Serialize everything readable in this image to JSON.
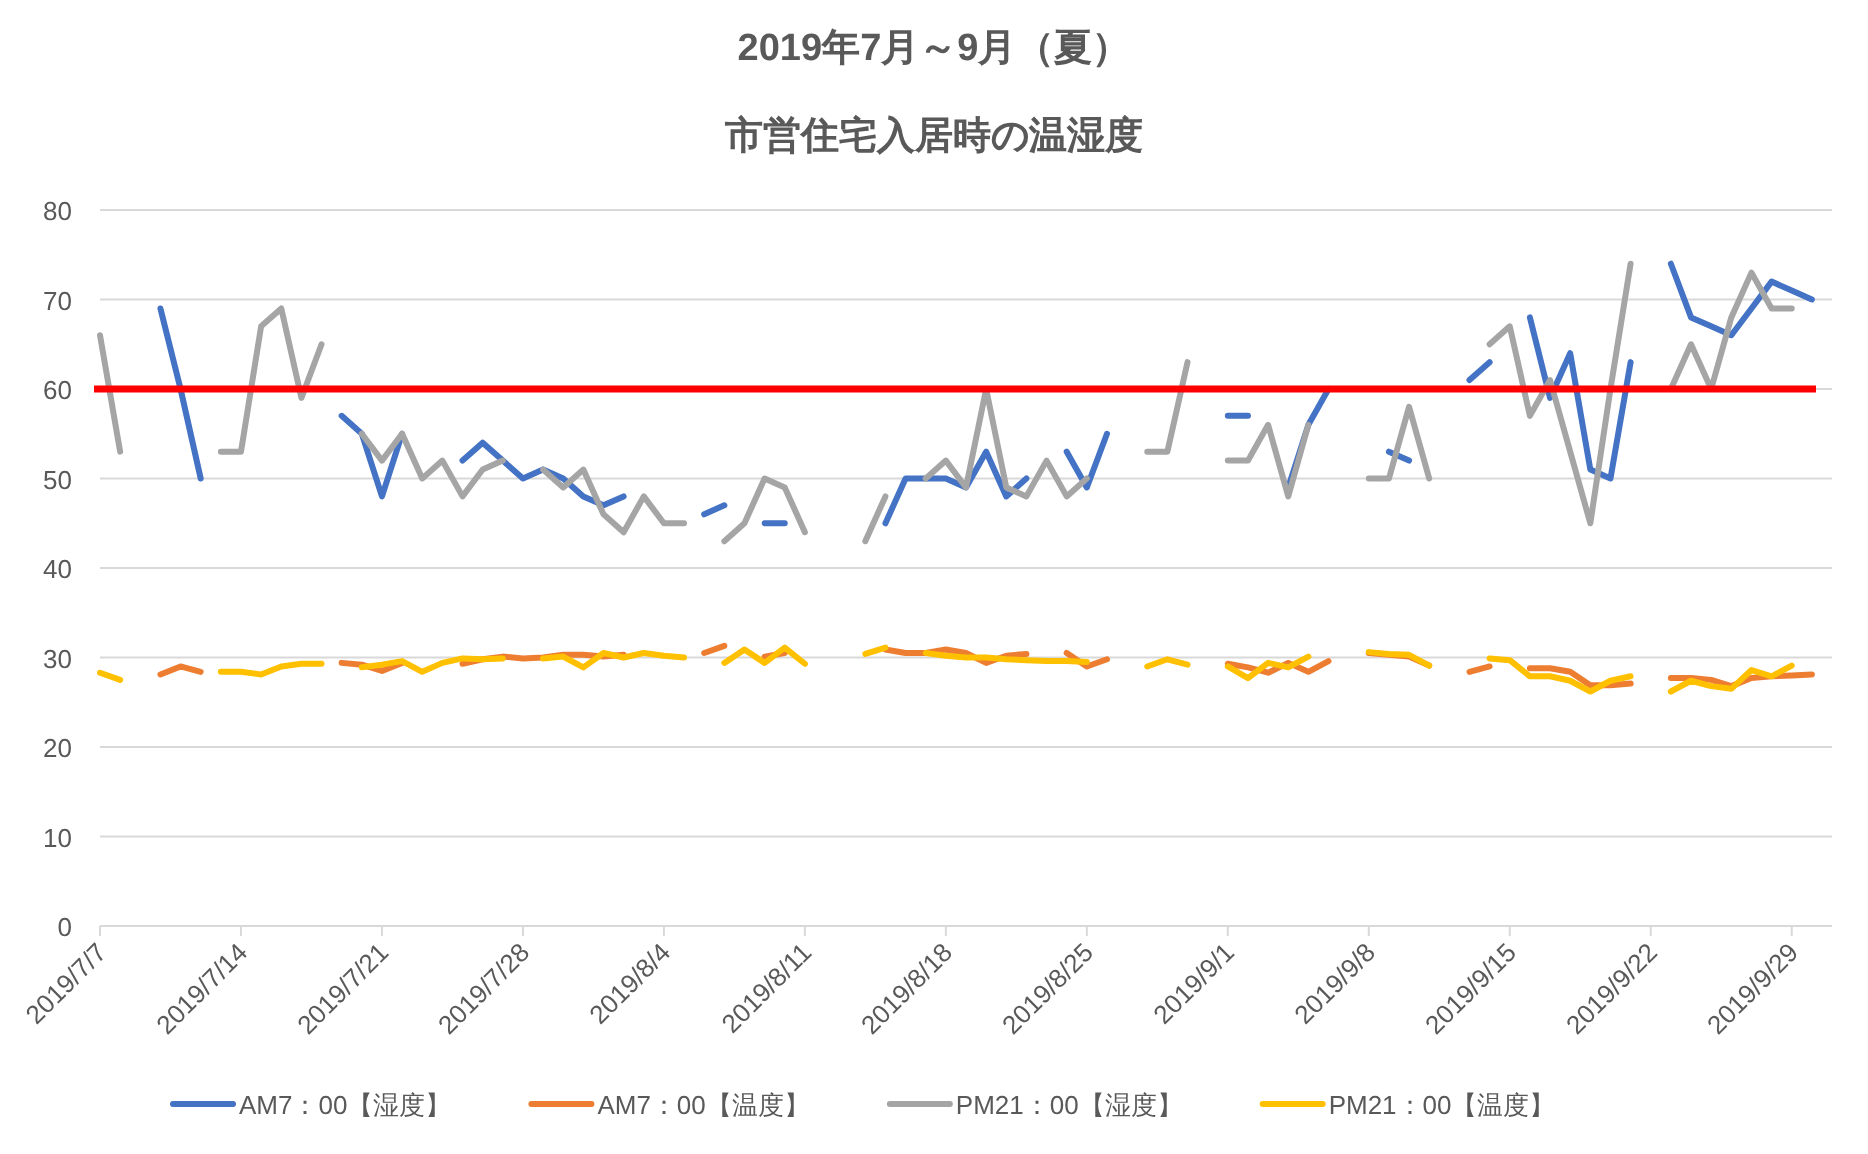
{
  "chart_data": {
    "type": "line",
    "title": "2019年7月～9月（夏）",
    "subtitle": "市営住宅入居時の温湿度",
    "x": [
      "2019-07-07",
      "2019-07-08",
      "2019-07-09",
      "2019-07-10",
      "2019-07-11",
      "2019-07-12",
      "2019-07-13",
      "2019-07-14",
      "2019-07-15",
      "2019-07-16",
      "2019-07-17",
      "2019-07-18",
      "2019-07-19",
      "2019-07-20",
      "2019-07-21",
      "2019-07-22",
      "2019-07-23",
      "2019-07-24",
      "2019-07-25",
      "2019-07-26",
      "2019-07-27",
      "2019-07-28",
      "2019-07-29",
      "2019-07-30",
      "2019-07-31",
      "2019-08-01",
      "2019-08-02",
      "2019-08-03",
      "2019-08-04",
      "2019-08-05",
      "2019-08-06",
      "2019-08-07",
      "2019-08-08",
      "2019-08-09",
      "2019-08-10",
      "2019-08-11",
      "2019-08-12",
      "2019-08-13",
      "2019-08-14",
      "2019-08-15",
      "2019-08-16",
      "2019-08-17",
      "2019-08-18",
      "2019-08-19",
      "2019-08-20",
      "2019-08-21",
      "2019-08-22",
      "2019-08-23",
      "2019-08-24",
      "2019-08-25",
      "2019-08-26",
      "2019-08-27",
      "2019-08-28",
      "2019-08-29",
      "2019-08-30",
      "2019-08-31",
      "2019-09-01",
      "2019-09-02",
      "2019-09-03",
      "2019-09-04",
      "2019-09-05",
      "2019-09-06",
      "2019-09-07",
      "2019-09-08",
      "2019-09-09",
      "2019-09-10",
      "2019-09-11",
      "2019-09-12",
      "2019-09-13",
      "2019-09-14",
      "2019-09-15",
      "2019-09-16",
      "2019-09-17",
      "2019-09-18",
      "2019-09-19",
      "2019-09-20",
      "2019-09-21",
      "2019-09-22",
      "2019-09-23",
      "2019-09-24",
      "2019-09-25",
      "2019-09-26",
      "2019-09-27",
      "2019-09-28",
      "2019-09-29",
      "2019-09-30"
    ],
    "series": [
      {
        "name": "AM7：00【湿度】",
        "color": "#4472c4",
        "values": [
          null,
          null,
          null,
          69,
          60,
          50,
          null,
          null,
          null,
          null,
          null,
          null,
          57,
          55,
          48,
          55,
          null,
          null,
          52,
          54,
          52,
          50,
          51,
          50,
          48,
          47,
          48,
          null,
          null,
          null,
          46,
          47,
          null,
          45,
          45,
          null,
          null,
          null,
          null,
          45,
          50,
          50,
          50,
          49,
          53,
          48,
          50,
          null,
          53,
          49,
          55,
          null,
          null,
          null,
          null,
          null,
          57,
          57,
          null,
          49,
          56,
          60,
          null,
          null,
          53,
          52,
          null,
          null,
          61,
          63,
          null,
          68,
          59,
          64,
          51,
          50,
          63,
          null,
          74,
          68,
          67,
          66,
          69,
          72,
          71,
          70
        ]
      },
      {
        "name": "AM7：00【温度】",
        "color": "#ed7d31",
        "values": [
          null,
          null,
          null,
          28.1,
          29,
          28.4,
          null,
          null,
          null,
          null,
          null,
          null,
          29.4,
          29.2,
          28.5,
          29.4,
          null,
          null,
          29.3,
          29.8,
          30.1,
          29.9,
          30,
          30.3,
          30.3,
          30.1,
          30.3,
          null,
          null,
          null,
          30.5,
          31.3,
          null,
          30.1,
          30.5,
          null,
          null,
          null,
          null,
          30.9,
          30.5,
          30.5,
          30.9,
          30.5,
          29.4,
          30.2,
          30.4,
          null,
          30.5,
          29,
          29.8,
          null,
          null,
          null,
          null,
          null,
          29.3,
          28.9,
          28.3,
          29.4,
          28.4,
          29.6,
          null,
          30.5,
          30.3,
          30.1,
          29.1,
          null,
          28.4,
          29,
          null,
          28.8,
          28.8,
          28.4,
          26.9,
          26.9,
          27.1,
          null,
          27.7,
          27.7,
          27.5,
          26.8,
          27.7,
          27.9,
          28,
          28.1
        ]
      },
      {
        "name": "PM21：00【湿度】",
        "color": "#a5a5a5",
        "values": [
          66,
          53,
          null,
          null,
          null,
          null,
          53,
          53,
          67,
          69,
          59,
          65,
          null,
          55,
          52,
          55,
          50,
          52,
          48,
          51,
          52,
          null,
          51,
          49,
          51,
          46,
          44,
          48,
          45,
          45,
          null,
          43,
          45,
          50,
          49,
          44,
          null,
          null,
          43,
          48,
          null,
          50,
          52,
          49,
          60,
          49,
          48,
          52,
          48,
          50,
          null,
          null,
          53,
          53,
          63,
          null,
          52,
          52,
          56,
          48,
          56,
          null,
          null,
          50,
          50,
          58,
          50,
          null,
          null,
          65,
          67,
          57,
          61,
          53,
          45,
          60,
          74,
          null,
          60,
          65,
          60,
          68,
          73,
          69,
          69,
          null
        ]
      },
      {
        "name": "PM21：00【温度】",
        "color": "#ffc000",
        "values": [
          28.3,
          27.5,
          null,
          null,
          null,
          null,
          28.4,
          28.4,
          28.1,
          29,
          29.3,
          29.3,
          null,
          28.9,
          29.2,
          29.6,
          28.4,
          29.4,
          29.9,
          29.8,
          29.9,
          null,
          29.9,
          30.1,
          28.9,
          30.5,
          30,
          30.5,
          30.2,
          30,
          null,
          29.4,
          30.9,
          29.4,
          31.1,
          29.3,
          null,
          null,
          30.4,
          31.1,
          null,
          30.5,
          30.2,
          30,
          30,
          29.8,
          29.7,
          29.6,
          29.6,
          29.5,
          null,
          null,
          29,
          29.8,
          29.2,
          null,
          29,
          27.7,
          29.4,
          28.9,
          30.1,
          null,
          null,
          30.6,
          30.4,
          30.3,
          29.1,
          null,
          null,
          29.9,
          29.7,
          27.9,
          27.9,
          27.4,
          26.2,
          27.4,
          27.9,
          null,
          26.2,
          27.4,
          26.8,
          26.5,
          28.6,
          27.9,
          29.1,
          null
        ]
      }
    ],
    "xlim": [
      "2019-07-07",
      "2019-10-01"
    ],
    "xticks": [
      {
        "value": "2019-07-07",
        "label": "2019/7/7"
      },
      {
        "value": "2019-07-14",
        "label": "2019/7/14"
      },
      {
        "value": "2019-07-21",
        "label": "2019/7/21"
      },
      {
        "value": "2019-07-28",
        "label": "2019/7/28"
      },
      {
        "value": "2019-08-04",
        "label": "2019/8/4"
      },
      {
        "value": "2019-08-11",
        "label": "2019/8/11"
      },
      {
        "value": "2019-08-18",
        "label": "2019/8/18"
      },
      {
        "value": "2019-08-25",
        "label": "2019/8/25"
      },
      {
        "value": "2019-09-01",
        "label": "2019/9/1"
      },
      {
        "value": "2019-09-08",
        "label": "2019/9/8"
      },
      {
        "value": "2019-09-15",
        "label": "2019/9/15"
      },
      {
        "value": "2019-09-22",
        "label": "2019/9/22"
      },
      {
        "value": "2019-09-29",
        "label": "2019/9/29"
      }
    ],
    "ylim": [
      0,
      80
    ],
    "yticks": [
      0,
      10,
      20,
      30,
      40,
      50,
      60,
      70,
      80
    ],
    "ref_lines": [
      {
        "axis": "y",
        "value": 60,
        "color": "#ff0000"
      }
    ],
    "grid": "y",
    "legend": "bottom",
    "marker": "none"
  }
}
